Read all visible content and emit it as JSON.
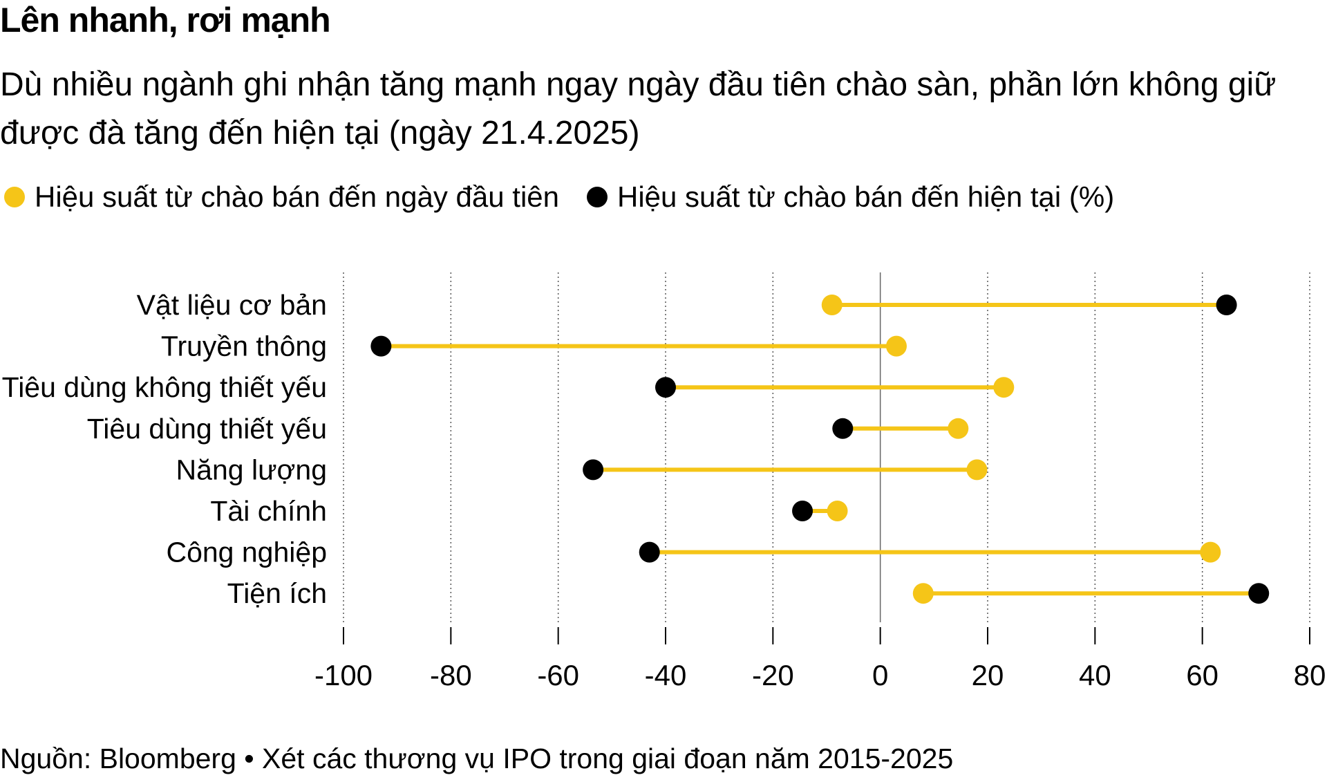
{
  "title": "Lên nhanh, rơi mạnh",
  "subtitle": "Dù nhiều ngành ghi nhận tăng mạnh ngay ngày đầu tiên chào sàn, phần lớn không giữ được đà tăng đến hiện tại (ngày 21.4.2025)",
  "source": "Nguồn: Bloomberg • Xét các thương vụ IPO trong giai đoạn năm 2015-2025",
  "colors": {
    "first_day": "#F5C518",
    "to_date": "#000000"
  },
  "chart_data": {
    "type": "dumbbell",
    "title": "Lên nhanh, rơi mạnh",
    "categories": [
      "Vật liệu cơ bản",
      "Truyền thông",
      "Tiêu dùng không thiết yếu",
      "Tiêu dùng thiết yếu",
      "Năng lượng",
      "Tài chính",
      "Công nghiệp",
      "Tiện ích"
    ],
    "series": [
      {
        "name": "Hiệu suất từ chào bán đến ngày đầu tiên",
        "color": "#F5C518",
        "values": [
          -9,
          3,
          23,
          14.5,
          18,
          -8,
          61.5,
          8
        ]
      },
      {
        "name": "Hiệu suất từ chào bán đến hiện tại (%)",
        "color": "#000000",
        "values": [
          64.5,
          -93,
          -40,
          -7,
          -53.5,
          -14.5,
          -43,
          70.5
        ]
      }
    ],
    "xlim": [
      -100,
      80
    ],
    "xticks": [
      -100,
      -80,
      -60,
      -40,
      -20,
      0,
      20,
      40,
      60,
      80
    ],
    "grid": "vertical dotted",
    "legend_position": "top-left"
  }
}
